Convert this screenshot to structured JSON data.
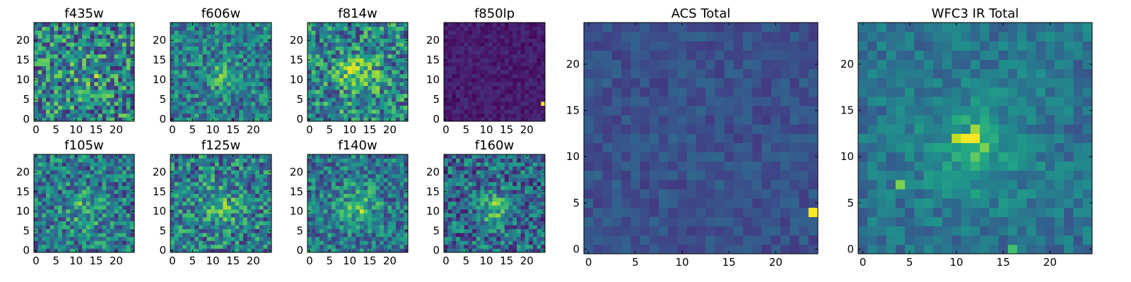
{
  "chart_data": [
    {
      "type": "heatmap",
      "title": "f435w",
      "xticks": [
        0,
        5,
        10,
        15,
        20
      ],
      "yticks": [
        0,
        5,
        10,
        15,
        20
      ],
      "xlim": [
        0,
        25
      ],
      "ylim": [
        0,
        25
      ],
      "colormap": "viridis",
      "vmin": 0,
      "vmax": 1,
      "hotspots": [
        {
          "x": 15,
          "y": 11,
          "value": 0.95
        }
      ]
    },
    {
      "type": "heatmap",
      "title": "f606w",
      "xticks": [
        0,
        5,
        10,
        15,
        20
      ],
      "yticks": [
        0,
        5,
        10,
        15,
        20
      ],
      "xlim": [
        0,
        25
      ],
      "ylim": [
        0,
        25
      ],
      "colormap": "viridis",
      "vmin": 0,
      "vmax": 1,
      "hotspots": [
        {
          "x": 13,
          "y": 12,
          "value": 0.8
        }
      ]
    },
    {
      "type": "heatmap",
      "title": "f814w",
      "xticks": [
        0,
        5,
        10,
        15,
        20
      ],
      "yticks": [
        0,
        5,
        10,
        15,
        20
      ],
      "xlim": [
        0,
        25
      ],
      "ylim": [
        0,
        25
      ],
      "colormap": "viridis",
      "vmin": 0,
      "vmax": 1,
      "hotspots": [
        {
          "x": 13,
          "y": 10,
          "value": 0.85
        }
      ]
    },
    {
      "type": "heatmap",
      "title": "f850lp",
      "xticks": [
        0,
        5,
        10,
        15,
        20
      ],
      "yticks": [
        0,
        5,
        10,
        15,
        20
      ],
      "xlim": [
        0,
        25
      ],
      "ylim": [
        0,
        25
      ],
      "colormap": "viridis",
      "vmin": 0,
      "vmax": 1,
      "hotspots": [
        {
          "x": 24,
          "y": 4,
          "value": 1.0
        }
      ]
    },
    {
      "type": "heatmap",
      "title": "f105w",
      "xticks": [
        0,
        5,
        10,
        15,
        20
      ],
      "yticks": [
        0,
        5,
        10,
        15,
        20
      ],
      "xlim": [
        0,
        25
      ],
      "ylim": [
        0,
        25
      ],
      "colormap": "viridis",
      "vmin": 0,
      "vmax": 1,
      "hotspots": [
        {
          "x": 11,
          "y": 12,
          "value": 0.85
        }
      ]
    },
    {
      "type": "heatmap",
      "title": "f125w",
      "xticks": [
        0,
        5,
        10,
        15,
        20
      ],
      "yticks": [
        0,
        5,
        10,
        15,
        20
      ],
      "xlim": [
        0,
        25
      ],
      "ylim": [
        0,
        25
      ],
      "colormap": "viridis",
      "vmin": 0,
      "vmax": 1,
      "hotspots": [
        {
          "x": 13,
          "y": 12,
          "value": 0.9
        }
      ]
    },
    {
      "type": "heatmap",
      "title": "f140w",
      "xticks": [
        0,
        5,
        10,
        15,
        20
      ],
      "yticks": [
        0,
        5,
        10,
        15,
        20
      ],
      "xlim": [
        0,
        25
      ],
      "ylim": [
        0,
        25
      ],
      "colormap": "viridis",
      "vmin": 0,
      "vmax": 1,
      "hotspots": [
        {
          "x": 13,
          "y": 10,
          "value": 0.95
        }
      ]
    },
    {
      "type": "heatmap",
      "title": "f160w",
      "xticks": [
        0,
        5,
        10,
        15,
        20
      ],
      "yticks": [
        0,
        5,
        10,
        15,
        20
      ],
      "xlim": [
        0,
        25
      ],
      "ylim": [
        0,
        25
      ],
      "colormap": "viridis",
      "vmin": 0,
      "vmax": 1,
      "hotspots": [
        {
          "x": 12,
          "y": 12,
          "value": 0.9
        }
      ]
    },
    {
      "type": "heatmap",
      "title": "ACS Total",
      "xticks": [
        0,
        5,
        10,
        15,
        20
      ],
      "yticks": [
        0,
        5,
        10,
        15,
        20
      ],
      "xlim": [
        0,
        25
      ],
      "ylim": [
        0,
        25
      ],
      "colormap": "viridis",
      "vmin": 0,
      "vmax": 1,
      "hotspots": [
        {
          "x": 24,
          "y": 4,
          "value": 1.0
        }
      ]
    },
    {
      "type": "heatmap",
      "title": "WFC3 IR Total",
      "xticks": [
        0,
        5,
        10,
        15,
        20
      ],
      "yticks": [
        0,
        5,
        10,
        15,
        20
      ],
      "xlim": [
        0,
        25
      ],
      "ylim": [
        0,
        25
      ],
      "colormap": "viridis",
      "vmin": 0,
      "vmax": 1,
      "hotspots": [
        {
          "x": 11,
          "y": 12,
          "value": 1.0
        },
        {
          "x": 12,
          "y": 12,
          "value": 1.0
        },
        {
          "x": 10,
          "y": 12,
          "value": 0.9
        },
        {
          "x": 12,
          "y": 13,
          "value": 0.85
        },
        {
          "x": 13,
          "y": 11,
          "value": 0.8
        },
        {
          "x": 12,
          "y": 10,
          "value": 0.75
        },
        {
          "x": 4,
          "y": 7,
          "value": 0.8
        },
        {
          "x": 16,
          "y": 0,
          "value": 0.7
        }
      ]
    }
  ]
}
